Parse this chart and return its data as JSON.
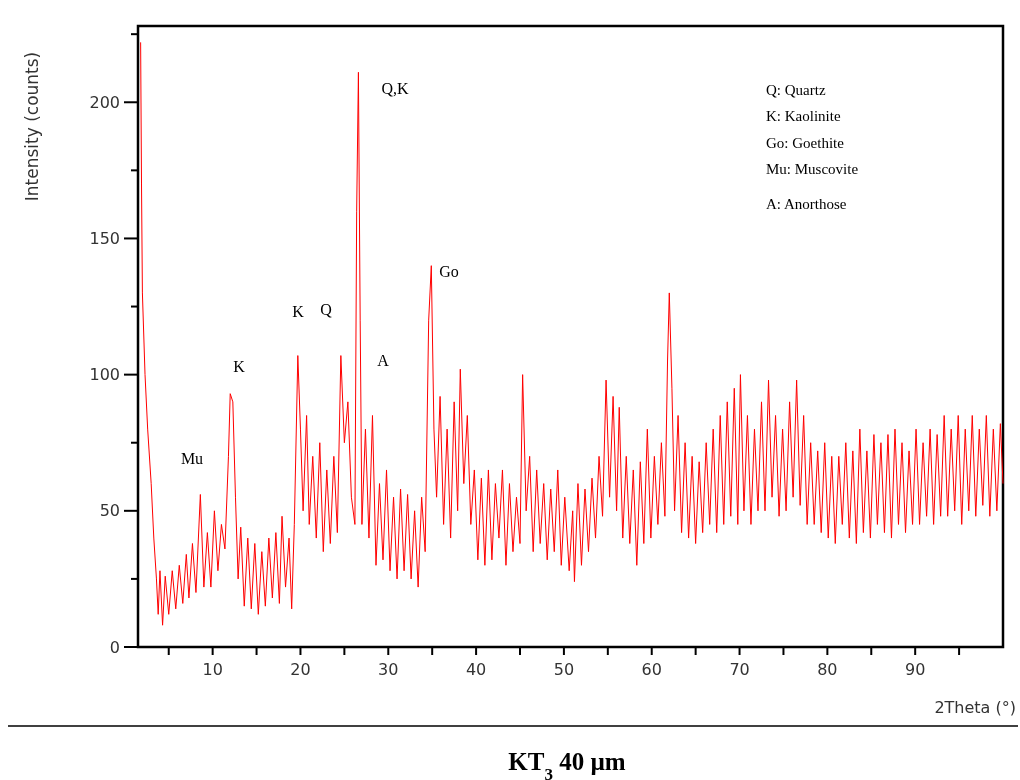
{
  "chart_data": {
    "type": "line",
    "title": "KT$_{3}$ 40 µm",
    "xlabel": "2Theta (°)",
    "ylabel": "Intensity (counts)",
    "xlim": [
      1.5,
      100
    ],
    "ylim": [
      0,
      228
    ],
    "xticks": [
      {
        "value": 5,
        "label": null
      },
      10,
      {
        "value": 15,
        "label": null
      },
      20,
      {
        "value": 25,
        "label": null
      },
      30,
      {
        "value": 35,
        "label": null
      },
      40,
      {
        "value": 45,
        "label": null
      },
      50,
      {
        "value": 55,
        "label": null
      },
      60,
      {
        "value": 65,
        "label": null
      },
      70,
      {
        "value": 75,
        "label": null
      },
      80,
      {
        "value": 85,
        "label": null
      },
      90,
      {
        "value": 95,
        "label": null
      }
    ],
    "yticks": [
      0,
      {
        "value": 25,
        "label": null
      },
      50,
      {
        "value": 75,
        "label": null
      },
      100,
      {
        "value": 125,
        "label": null
      },
      150,
      {
        "value": 175,
        "label": null
      },
      200,
      {
        "value": 225,
        "label": null
      }
    ],
    "grid": false,
    "marker": "none",
    "line_style": "solid",
    "series": [
      {
        "color": "#ff0000",
        "x": [
          1.8,
          1.9,
          2,
          2.3,
          2.6,
          3,
          3.3,
          3.6,
          3.8,
          4,
          4.3,
          4.6,
          5,
          5.4,
          5.8,
          6.2,
          6.6,
          7,
          7.3,
          7.7,
          8.1,
          8.6,
          9,
          9.4,
          9.8,
          10.2,
          10.6,
          11,
          11.4,
          11.8,
          12,
          12.3,
          12.6,
          12.9,
          13.2,
          13.6,
          14,
          14.4,
          14.8,
          15.2,
          15.6,
          16,
          16.4,
          16.8,
          17.2,
          17.6,
          17.9,
          18.3,
          18.7,
          19,
          19.3,
          19.7,
          20,
          20.3,
          20.7,
          21,
          21.4,
          21.8,
          22.2,
          22.6,
          23,
          23.4,
          23.8,
          24.2,
          24.6,
          25,
          25.4,
          25.8,
          26.2,
          26.4,
          26.6,
          26.8,
          27,
          27.4,
          27.8,
          28.2,
          28.6,
          29,
          29.4,
          29.8,
          30.2,
          30.6,
          31,
          31.4,
          31.8,
          32.2,
          32.6,
          33,
          33.4,
          33.8,
          34.2,
          34.6,
          34.9,
          35.2,
          35.5,
          35.9,
          36.3,
          36.7,
          37.1,
          37.5,
          37.9,
          38.2,
          38.6,
          39,
          39.4,
          39.8,
          40.2,
          40.6,
          41,
          41.4,
          41.8,
          42.2,
          42.6,
          43,
          43.4,
          43.8,
          44.2,
          44.6,
          45,
          45.3,
          45.7,
          46.1,
          46.5,
          46.9,
          47.3,
          47.7,
          48.1,
          48.5,
          48.9,
          49.3,
          49.7,
          50.1,
          50.6,
          51,
          51.2,
          51.6,
          52,
          52.4,
          52.8,
          53.2,
          53.6,
          54,
          54.4,
          54.8,
          55.2,
          55.6,
          56,
          56.3,
          56.7,
          57.1,
          57.5,
          57.9,
          58.3,
          58.7,
          59.1,
          59.5,
          59.9,
          60.3,
          60.7,
          61.1,
          61.5,
          61.8,
          62,
          62.3,
          62.6,
          63,
          63.4,
          63.8,
          64.2,
          64.6,
          65,
          65.4,
          65.8,
          66.2,
          66.6,
          67,
          67.4,
          67.8,
          68.2,
          68.6,
          69,
          69.4,
          69.8,
          70.1,
          70.5,
          70.9,
          71.3,
          71.7,
          72.1,
          72.5,
          72.9,
          73.3,
          73.7,
          74.1,
          74.5,
          74.9,
          75.3,
          75.7,
          76.1,
          76.5,
          76.9,
          77.3,
          77.7,
          78.1,
          78.5,
          78.9,
          79.3,
          79.7,
          80.1,
          80.5,
          80.9,
          81.3,
          81.7,
          82.1,
          82.5,
          82.9,
          83.3,
          83.7,
          84.1,
          84.5,
          84.9,
          85.3,
          85.7,
          86.1,
          86.5,
          86.9,
          87.3,
          87.7,
          88.1,
          88.5,
          88.9,
          89.3,
          89.7,
          90.1,
          90.5,
          90.9,
          91.3,
          91.7,
          92.1,
          92.5,
          92.9,
          93.3,
          93.7,
          94.1,
          94.5,
          94.9,
          95.3,
          95.7,
          96.1,
          96.5,
          96.9,
          97.3,
          97.7,
          98.1,
          98.5,
          98.9,
          99.3,
          99.7,
          100
        ],
        "values": [
          222,
          170,
          130,
          100,
          80,
          60,
          40,
          25,
          12,
          28,
          8,
          26,
          12,
          28,
          14,
          30,
          16,
          34,
          18,
          38,
          20,
          56,
          22,
          42,
          22,
          50,
          28,
          45,
          36,
          70,
          93,
          90,
          55,
          25,
          44,
          15,
          40,
          14,
          38,
          12,
          35,
          15,
          40,
          18,
          42,
          16,
          48,
          22,
          40,
          14,
          45,
          107,
          80,
          50,
          85,
          45,
          70,
          40,
          75,
          35,
          65,
          38,
          70,
          42,
          107,
          75,
          90,
          55,
          45,
          160,
          211,
          120,
          45,
          80,
          40,
          85,
          30,
          60,
          32,
          65,
          28,
          55,
          25,
          58,
          28,
          56,
          25,
          50,
          22,
          55,
          35,
          120,
          140,
          80,
          55,
          92,
          45,
          80,
          40,
          90,
          50,
          102,
          60,
          85,
          45,
          65,
          32,
          62,
          30,
          65,
          32,
          60,
          40,
          65,
          30,
          60,
          35,
          55,
          38,
          100,
          50,
          70,
          35,
          65,
          38,
          60,
          32,
          58,
          35,
          65,
          30,
          55,
          28,
          50,
          24,
          60,
          30,
          58,
          35,
          62,
          40,
          70,
          48,
          98,
          55,
          92,
          50,
          88,
          40,
          70,
          38,
          65,
          30,
          68,
          38,
          80,
          40,
          70,
          45,
          75,
          48,
          105,
          130,
          95,
          50,
          85,
          42,
          75,
          40,
          70,
          38,
          68,
          42,
          75,
          45,
          80,
          42,
          85,
          45,
          90,
          48,
          95,
          45,
          100,
          50,
          85,
          45,
          80,
          50,
          90,
          50,
          98,
          55,
          85,
          48,
          80,
          50,
          90,
          55,
          98,
          52,
          85,
          45,
          75,
          45,
          72,
          42,
          75,
          40,
          70,
          38,
          70,
          45,
          75,
          40,
          72,
          38,
          80,
          42,
          72,
          40,
          78,
          45,
          75,
          42,
          78,
          40,
          80,
          45,
          75,
          42,
          72,
          45,
          80,
          45,
          75,
          48,
          80,
          45,
          78,
          48,
          85,
          48,
          80,
          50,
          85,
          45,
          80,
          50,
          85,
          48,
          80,
          52,
          85,
          48,
          80,
          50,
          82,
          60
        ]
      }
    ],
    "annotations": [
      "Q,K",
      "K",
      "Mu",
      "K",
      "Q",
      "A",
      "Go",
      "Q: Quartz",
      "K: Kaolinite",
      "Go: Goethite",
      "Mu: Muscovite",
      "A: Anorthose"
    ]
  }
}
